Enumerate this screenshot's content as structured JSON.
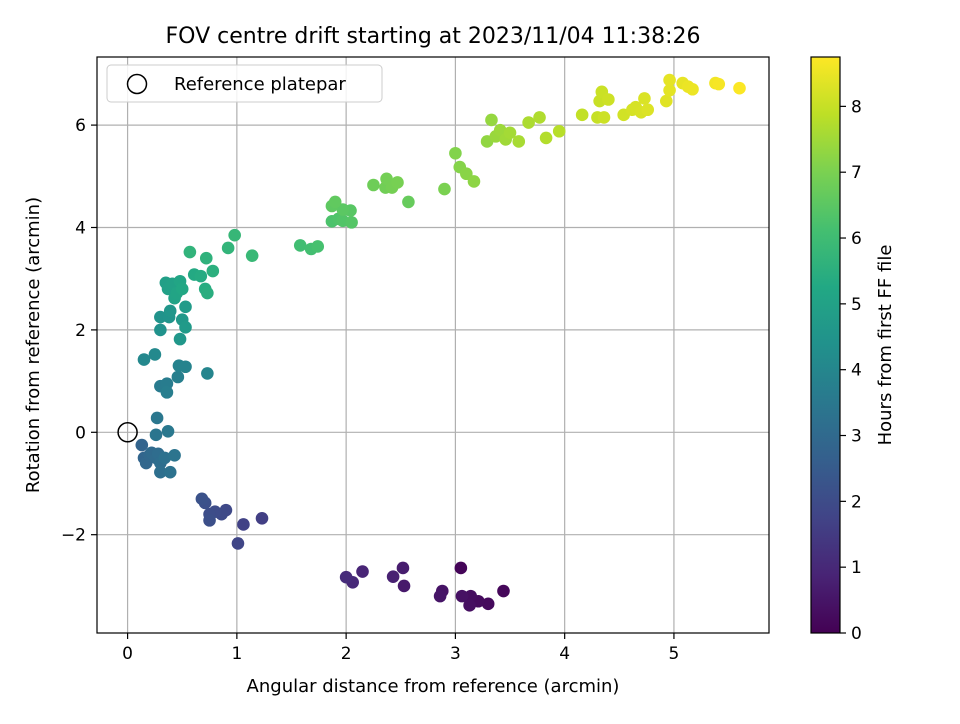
{
  "chart_data": {
    "type": "scatter",
    "title": "FOV centre drift starting at 2023/11/04 11:38:26",
    "xlabel": "Angular distance from reference (arcmin)",
    "ylabel": "Rotation from reference (arcmin)",
    "xlim": [
      -0.28,
      5.87
    ],
    "ylim": [
      -3.92,
      7.33
    ],
    "xticks": [
      0,
      1,
      2,
      3,
      4,
      5
    ],
    "yticks": [
      -2,
      0,
      2,
      4,
      6
    ],
    "xtick_labels": [
      "0",
      "1",
      "2",
      "3",
      "4",
      "5"
    ],
    "ytick_labels": [
      "−2",
      "0",
      "2",
      "4",
      "6"
    ],
    "grid": true,
    "legend": {
      "placement": "top-left",
      "entries": [
        {
          "label": "Reference platepar",
          "marker": "open-circle"
        }
      ]
    },
    "reference_point": {
      "x": 0,
      "y": 0
    },
    "colorbar": {
      "label": "Hours from first FF file",
      "range": [
        0,
        8.75
      ],
      "ticks": [
        0,
        1,
        2,
        3,
        4,
        5,
        6,
        7,
        8
      ],
      "tick_labels": [
        "0",
        "1",
        "2",
        "3",
        "4",
        "5",
        "6",
        "7",
        "8"
      ],
      "colormap": "viridis"
    },
    "points": [
      {
        "x": 3.05,
        "y": -2.65,
        "h": 0.1
      },
      {
        "x": 3.44,
        "y": -3.1,
        "h": 0.15
      },
      {
        "x": 3.3,
        "y": -3.35,
        "h": 0.2
      },
      {
        "x": 3.21,
        "y": -3.3,
        "h": 0.25
      },
      {
        "x": 3.14,
        "y": -3.2,
        "h": 0.3
      },
      {
        "x": 3.13,
        "y": -3.38,
        "h": 0.35
      },
      {
        "x": 3.06,
        "y": -3.2,
        "h": 0.4
      },
      {
        "x": 2.88,
        "y": -3.1,
        "h": 0.45
      },
      {
        "x": 2.86,
        "y": -3.2,
        "h": 0.5
      },
      {
        "x": 2.53,
        "y": -3.0,
        "h": 0.6
      },
      {
        "x": 2.52,
        "y": -2.65,
        "h": 0.7
      },
      {
        "x": 2.43,
        "y": -2.82,
        "h": 0.8
      },
      {
        "x": 2.15,
        "y": -2.72,
        "h": 0.9
      },
      {
        "x": 2.06,
        "y": -2.93,
        "h": 1.0
      },
      {
        "x": 2.0,
        "y": -2.83,
        "h": 1.1
      },
      {
        "x": 1.23,
        "y": -1.68,
        "h": 1.6
      },
      {
        "x": 1.06,
        "y": -1.8,
        "h": 1.7
      },
      {
        "x": 1.01,
        "y": -2.17,
        "h": 1.8
      },
      {
        "x": 0.9,
        "y": -1.52,
        "h": 1.9
      },
      {
        "x": 0.86,
        "y": -1.6,
        "h": 1.95
      },
      {
        "x": 0.8,
        "y": -1.55,
        "h": 2.0
      },
      {
        "x": 0.75,
        "y": -1.6,
        "h": 2.05
      },
      {
        "x": 0.75,
        "y": -1.72,
        "h": 2.1
      },
      {
        "x": 0.71,
        "y": -1.38,
        "h": 2.15
      },
      {
        "x": 0.68,
        "y": -1.3,
        "h": 2.2
      },
      {
        "x": 0.13,
        "y": -0.25,
        "h": 2.8
      },
      {
        "x": 0.15,
        "y": -0.5,
        "h": 2.85
      },
      {
        "x": 0.17,
        "y": -0.6,
        "h": 2.9
      },
      {
        "x": 0.2,
        "y": -0.45,
        "h": 2.95
      },
      {
        "x": 0.22,
        "y": -0.4,
        "h": 3.0
      },
      {
        "x": 0.26,
        "y": -0.5,
        "h": 3.05
      },
      {
        "x": 0.28,
        "y": -0.42,
        "h": 3.1
      },
      {
        "x": 0.3,
        "y": -0.6,
        "h": 3.15
      },
      {
        "x": 0.3,
        "y": -0.78,
        "h": 3.2
      },
      {
        "x": 0.34,
        "y": -0.5,
        "h": 3.25
      },
      {
        "x": 0.39,
        "y": -0.78,
        "h": 3.3
      },
      {
        "x": 0.43,
        "y": -0.45,
        "h": 3.35
      },
      {
        "x": 0.26,
        "y": -0.05,
        "h": 3.4
      },
      {
        "x": 0.27,
        "y": 0.28,
        "h": 3.45
      },
      {
        "x": 0.37,
        "y": 0.02,
        "h": 3.5
      },
      {
        "x": 0.3,
        "y": 0.9,
        "h": 3.6
      },
      {
        "x": 0.36,
        "y": 0.95,
        "h": 3.65
      },
      {
        "x": 0.36,
        "y": 0.78,
        "h": 3.7
      },
      {
        "x": 0.46,
        "y": 1.08,
        "h": 3.75
      },
      {
        "x": 0.47,
        "y": 1.3,
        "h": 3.85
      },
      {
        "x": 0.53,
        "y": 1.28,
        "h": 3.9
      },
      {
        "x": 0.73,
        "y": 1.15,
        "h": 3.95
      },
      {
        "x": 0.15,
        "y": 1.42,
        "h": 4.05
      },
      {
        "x": 0.25,
        "y": 1.52,
        "h": 4.1
      },
      {
        "x": 0.3,
        "y": 2.0,
        "h": 4.4
      },
      {
        "x": 0.3,
        "y": 2.25,
        "h": 4.45
      },
      {
        "x": 0.38,
        "y": 2.25,
        "h": 4.5
      },
      {
        "x": 0.39,
        "y": 2.37,
        "h": 4.55
      },
      {
        "x": 0.48,
        "y": 1.82,
        "h": 4.6
      },
      {
        "x": 0.5,
        "y": 2.2,
        "h": 4.65
      },
      {
        "x": 0.53,
        "y": 2.05,
        "h": 4.7
      },
      {
        "x": 0.53,
        "y": 2.45,
        "h": 4.75
      },
      {
        "x": 0.35,
        "y": 2.92,
        "h": 4.9
      },
      {
        "x": 0.37,
        "y": 2.8,
        "h": 4.95
      },
      {
        "x": 0.41,
        "y": 2.9,
        "h": 5.0
      },
      {
        "x": 0.43,
        "y": 2.62,
        "h": 5.05
      },
      {
        "x": 0.45,
        "y": 2.72,
        "h": 5.1
      },
      {
        "x": 0.48,
        "y": 2.95,
        "h": 5.15
      },
      {
        "x": 0.5,
        "y": 2.8,
        "h": 5.2
      },
      {
        "x": 0.61,
        "y": 3.08,
        "h": 5.3
      },
      {
        "x": 0.67,
        "y": 3.05,
        "h": 5.35
      },
      {
        "x": 0.71,
        "y": 2.8,
        "h": 5.4
      },
      {
        "x": 0.73,
        "y": 2.72,
        "h": 5.45
      },
      {
        "x": 0.78,
        "y": 3.15,
        "h": 5.5
      },
      {
        "x": 0.72,
        "y": 3.4,
        "h": 5.6
      },
      {
        "x": 0.57,
        "y": 3.52,
        "h": 5.65
      },
      {
        "x": 0.92,
        "y": 3.6,
        "h": 5.7
      },
      {
        "x": 0.98,
        "y": 3.85,
        "h": 5.8
      },
      {
        "x": 1.14,
        "y": 3.45,
        "h": 5.85
      },
      {
        "x": 1.58,
        "y": 3.65,
        "h": 6.05
      },
      {
        "x": 1.68,
        "y": 3.58,
        "h": 6.1
      },
      {
        "x": 1.74,
        "y": 3.63,
        "h": 6.15
      },
      {
        "x": 1.87,
        "y": 4.12,
        "h": 6.25
      },
      {
        "x": 1.93,
        "y": 4.17,
        "h": 6.3
      },
      {
        "x": 1.97,
        "y": 4.13,
        "h": 6.35
      },
      {
        "x": 2.05,
        "y": 4.1,
        "h": 6.4
      },
      {
        "x": 2.04,
        "y": 4.33,
        "h": 6.45
      },
      {
        "x": 1.97,
        "y": 4.35,
        "h": 6.5
      },
      {
        "x": 1.87,
        "y": 4.42,
        "h": 6.55
      },
      {
        "x": 1.9,
        "y": 4.5,
        "h": 6.6
      },
      {
        "x": 2.57,
        "y": 4.5,
        "h": 6.7
      },
      {
        "x": 2.25,
        "y": 4.83,
        "h": 6.8
      },
      {
        "x": 2.36,
        "y": 4.78,
        "h": 6.85
      },
      {
        "x": 2.37,
        "y": 4.95,
        "h": 6.9
      },
      {
        "x": 2.42,
        "y": 4.78,
        "h": 6.92
      },
      {
        "x": 2.47,
        "y": 4.88,
        "h": 6.95
      },
      {
        "x": 2.9,
        "y": 4.75,
        "h": 7.0
      },
      {
        "x": 3.0,
        "y": 5.45,
        "h": 7.1
      },
      {
        "x": 3.04,
        "y": 5.18,
        "h": 7.15
      },
      {
        "x": 3.1,
        "y": 5.05,
        "h": 7.2
      },
      {
        "x": 3.17,
        "y": 4.9,
        "h": 7.25
      },
      {
        "x": 3.29,
        "y": 5.68,
        "h": 7.3
      },
      {
        "x": 3.33,
        "y": 6.1,
        "h": 7.35
      },
      {
        "x": 3.37,
        "y": 5.78,
        "h": 7.4
      },
      {
        "x": 3.41,
        "y": 5.9,
        "h": 7.45
      },
      {
        "x": 3.46,
        "y": 5.72,
        "h": 7.5
      },
      {
        "x": 3.5,
        "y": 5.85,
        "h": 7.55
      },
      {
        "x": 3.58,
        "y": 5.68,
        "h": 7.6
      },
      {
        "x": 3.67,
        "y": 6.05,
        "h": 7.65
      },
      {
        "x": 3.77,
        "y": 6.15,
        "h": 7.7
      },
      {
        "x": 3.83,
        "y": 5.75,
        "h": 7.75
      },
      {
        "x": 3.95,
        "y": 5.88,
        "h": 7.8
      },
      {
        "x": 4.16,
        "y": 6.2,
        "h": 7.95
      },
      {
        "x": 4.3,
        "y": 6.15,
        "h": 8.0
      },
      {
        "x": 4.32,
        "y": 6.47,
        "h": 8.02
      },
      {
        "x": 4.34,
        "y": 6.65,
        "h": 8.05
      },
      {
        "x": 4.36,
        "y": 6.15,
        "h": 8.08
      },
      {
        "x": 4.4,
        "y": 6.5,
        "h": 8.1
      },
      {
        "x": 4.54,
        "y": 6.2,
        "h": 8.15
      },
      {
        "x": 4.62,
        "y": 6.3,
        "h": 8.2
      },
      {
        "x": 4.65,
        "y": 6.35,
        "h": 8.22
      },
      {
        "x": 4.7,
        "y": 6.25,
        "h": 8.25
      },
      {
        "x": 4.73,
        "y": 6.52,
        "h": 8.27
      },
      {
        "x": 4.76,
        "y": 6.3,
        "h": 8.3
      },
      {
        "x": 4.93,
        "y": 6.47,
        "h": 8.35
      },
      {
        "x": 4.96,
        "y": 6.68,
        "h": 8.4
      },
      {
        "x": 4.96,
        "y": 6.88,
        "h": 8.42
      },
      {
        "x": 5.08,
        "y": 6.82,
        "h": 8.45
      },
      {
        "x": 5.13,
        "y": 6.75,
        "h": 8.5
      },
      {
        "x": 5.17,
        "y": 6.7,
        "h": 8.52
      },
      {
        "x": 5.38,
        "y": 6.82,
        "h": 8.6
      },
      {
        "x": 5.41,
        "y": 6.8,
        "h": 8.65
      },
      {
        "x": 5.6,
        "y": 6.72,
        "h": 8.72
      }
    ]
  }
}
